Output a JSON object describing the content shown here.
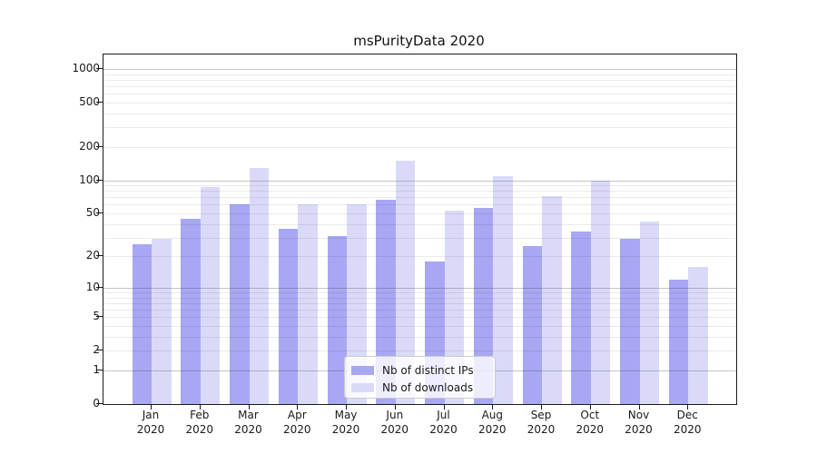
{
  "chart_data": {
    "type": "bar",
    "title": "msPurityData 2020",
    "categories": [
      "Jan",
      "Feb",
      "Mar",
      "Apr",
      "May",
      "Jun",
      "Jul",
      "Aug",
      "Sep",
      "Oct",
      "Nov",
      "Dec"
    ],
    "category_year": "2020",
    "series": [
      {
        "name": "Nb of distinct IPs",
        "color": "#a7a7f3",
        "values": [
          26,
          45,
          61,
          36,
          31,
          66,
          18,
          56,
          25,
          34,
          29,
          12
        ]
      },
      {
        "name": "Nb of downloads",
        "color": "#dadaf8",
        "values": [
          29,
          86,
          128,
          61,
          61,
          149,
          53,
          108,
          72,
          100,
          42,
          16
        ]
      }
    ],
    "xlabel": "",
    "ylabel": "",
    "yscale": "log1p",
    "ytick_labels": [
      0,
      1,
      2,
      5,
      10,
      20,
      50,
      100,
      200,
      500,
      1000
    ],
    "ylim": [
      0,
      1300
    ],
    "grid": "horizontal major and minor gridlines drawn above bars",
    "legend_position": "lower center"
  }
}
